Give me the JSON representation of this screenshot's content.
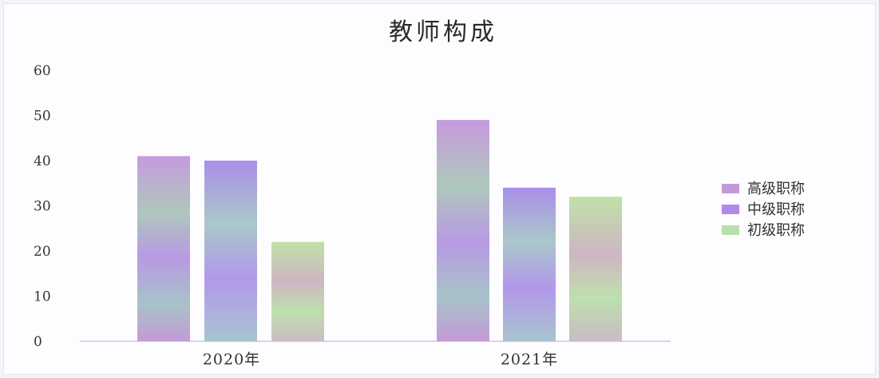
{
  "chart_data": {
    "type": "bar",
    "title": "教师构成",
    "categories": [
      "2020年",
      "2021年"
    ],
    "series": [
      {
        "name": "高级职称",
        "values": [
          41,
          49
        ],
        "color": "#c39ad8"
      },
      {
        "name": "中级职称",
        "values": [
          40,
          34
        ],
        "color": "#b08ae8"
      },
      {
        "name": "初级职称",
        "values": [
          22,
          32
        ],
        "color": "#b8e0a8"
      }
    ],
    "ylim": [
      0,
      60
    ],
    "yticks": [
      "0",
      "10",
      "20",
      "30",
      "40",
      "50",
      "60"
    ],
    "xlabel": "",
    "ylabel": "",
    "grid": false,
    "legend_position": "right"
  }
}
